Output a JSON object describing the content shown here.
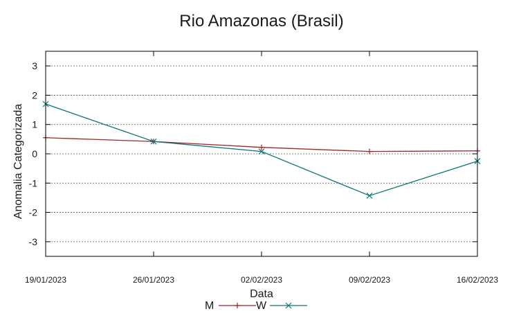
{
  "chart_data": {
    "type": "line",
    "title": "Rio Amazonas (Brasil)",
    "xlabel": "Data",
    "ylabel": "Anomalia Categorizada",
    "categories": [
      "19/01/2023",
      "26/01/2023",
      "02/02/2023",
      "09/02/2023",
      "16/02/2023"
    ],
    "ylim": [
      -3.5,
      3.5
    ],
    "yticks": [
      3,
      2,
      1,
      0,
      -1,
      -2,
      -3
    ],
    "grid": true,
    "legend_position": "bottom-center",
    "series": [
      {
        "name": "M",
        "color": "#a0222a",
        "marker": "plus",
        "values": [
          0.55,
          0.42,
          0.22,
          0.08,
          0.1
        ]
      },
      {
        "name": "W",
        "color": "#0d7277",
        "marker": "x",
        "values": [
          1.7,
          0.42,
          0.08,
          -1.43,
          -0.25
        ]
      }
    ]
  }
}
